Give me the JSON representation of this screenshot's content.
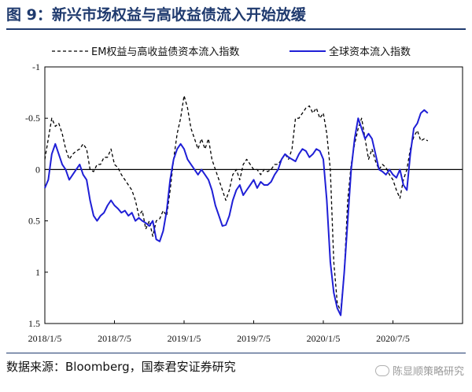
{
  "title": "图 9：新兴市场权益与高收益债流入开始放缓",
  "source": "数据来源：Bloomberg，国泰君安证券研究",
  "watermark": "陈显顺策略研究",
  "colors": {
    "title": "#1f3a6e",
    "series_em": "#000000",
    "series_global": "#1f1fd6"
  },
  "chart_data": {
    "type": "line",
    "y_inverted": true,
    "ylim": [
      -1,
      1.5
    ],
    "y_ticks": [
      {
        "value": -1,
        "label": "-1"
      },
      {
        "value": -0.5,
        "label": "-0.5"
      },
      {
        "value": 0,
        "label": "0"
      },
      {
        "value": 0.5,
        "label": "0.5"
      },
      {
        "value": 1,
        "label": "1"
      },
      {
        "value": 1.5,
        "label": "1.5"
      }
    ],
    "xlim": [
      0,
      36
    ],
    "x_ticks": [
      {
        "value": 0,
        "label": "2018/1/5"
      },
      {
        "value": 6,
        "label": "2018/7/5"
      },
      {
        "value": 12,
        "label": "2019/1/5"
      },
      {
        "value": 18,
        "label": "2019/7/5"
      },
      {
        "value": 24,
        "label": "2020/1/5"
      },
      {
        "value": 30,
        "label": "2020/7/5"
      }
    ],
    "legend_position": "top",
    "grid": false,
    "series": [
      {
        "name": "EM权益与高收益债资本流入指数",
        "style": "dashed",
        "points": [
          [
            0,
            -0.1
          ],
          [
            0.3,
            -0.3
          ],
          [
            0.6,
            -0.5
          ],
          [
            0.9,
            -0.42
          ],
          [
            1.2,
            -0.45
          ],
          [
            1.5,
            -0.35
          ],
          [
            1.8,
            -0.2
          ],
          [
            2.1,
            -0.1
          ],
          [
            2.4,
            -0.15
          ],
          [
            2.7,
            -0.18
          ],
          [
            3.0,
            -0.2
          ],
          [
            3.3,
            -0.25
          ],
          [
            3.6,
            -0.2
          ],
          [
            3.9,
            0.0
          ],
          [
            4.2,
            0.02
          ],
          [
            4.5,
            -0.05
          ],
          [
            4.8,
            -0.05
          ],
          [
            5.1,
            -0.12
          ],
          [
            5.4,
            -0.12
          ],
          [
            5.7,
            -0.2
          ],
          [
            6.0,
            -0.05
          ],
          [
            6.3,
            -0.02
          ],
          [
            6.6,
            0.05
          ],
          [
            6.9,
            0.1
          ],
          [
            7.2,
            0.15
          ],
          [
            7.5,
            0.2
          ],
          [
            7.8,
            0.3
          ],
          [
            8.1,
            0.45
          ],
          [
            8.4,
            0.4
          ],
          [
            8.7,
            0.58
          ],
          [
            9.0,
            0.5
          ],
          [
            9.3,
            0.65
          ],
          [
            9.6,
            0.5
          ],
          [
            9.9,
            0.48
          ],
          [
            10.2,
            0.4
          ],
          [
            10.5,
            0.45
          ],
          [
            10.8,
            0.2
          ],
          [
            11.1,
            -0.1
          ],
          [
            11.4,
            -0.35
          ],
          [
            11.7,
            -0.5
          ],
          [
            12.0,
            -0.72
          ],
          [
            12.3,
            -0.6
          ],
          [
            12.6,
            -0.4
          ],
          [
            12.9,
            -0.3
          ],
          [
            13.2,
            -0.2
          ],
          [
            13.5,
            -0.3
          ],
          [
            13.8,
            -0.2
          ],
          [
            14.1,
            -0.3
          ],
          [
            14.4,
            -0.1
          ],
          [
            14.7,
            0.0
          ],
          [
            15.0,
            0.1
          ],
          [
            15.3,
            0.2
          ],
          [
            15.6,
            0.3
          ],
          [
            15.9,
            0.2
          ],
          [
            16.2,
            0.05
          ],
          [
            16.5,
            0.0
          ],
          [
            16.8,
            0.1
          ],
          [
            17.1,
            -0.05
          ],
          [
            17.4,
            -0.1
          ],
          [
            17.7,
            -0.05
          ],
          [
            18.0,
            0.0
          ],
          [
            18.3,
            0.0
          ],
          [
            18.6,
            0.05
          ],
          [
            18.9,
            0.0
          ],
          [
            19.2,
            0.02
          ],
          [
            19.5,
            0.0
          ],
          [
            19.8,
            -0.05
          ],
          [
            20.1,
            -0.05
          ],
          [
            20.4,
            -0.1
          ],
          [
            20.7,
            -0.15
          ],
          [
            21.0,
            -0.1
          ],
          [
            21.3,
            -0.2
          ],
          [
            21.6,
            -0.5
          ],
          [
            21.9,
            -0.5
          ],
          [
            22.2,
            -0.55
          ],
          [
            22.5,
            -0.6
          ],
          [
            22.8,
            -0.62
          ],
          [
            23.1,
            -0.55
          ],
          [
            23.4,
            -0.6
          ],
          [
            23.7,
            -0.5
          ],
          [
            24.0,
            -0.55
          ],
          [
            24.3,
            -0.35
          ],
          [
            24.6,
            0.0
          ],
          [
            24.9,
            0.9
          ],
          [
            25.2,
            1.3
          ],
          [
            25.5,
            1.38
          ],
          [
            25.8,
            1.0
          ],
          [
            26.1,
            0.3
          ],
          [
            26.4,
            -0.05
          ],
          [
            26.7,
            -0.25
          ],
          [
            27.0,
            -0.4
          ],
          [
            27.3,
            -0.5
          ],
          [
            27.6,
            -0.3
          ],
          [
            27.9,
            -0.1
          ],
          [
            28.2,
            -0.2
          ],
          [
            28.5,
            -0.08
          ],
          [
            28.8,
            0.0
          ],
          [
            29.1,
            -0.05
          ],
          [
            29.4,
            -0.02
          ],
          [
            29.7,
            0.05
          ],
          [
            30.0,
            0.1
          ],
          [
            30.3,
            0.2
          ],
          [
            30.6,
            0.28
          ],
          [
            30.9,
            0.1
          ],
          [
            31.2,
            0.0
          ],
          [
            31.5,
            -0.2
          ],
          [
            31.8,
            -0.32
          ],
          [
            32.1,
            -0.38
          ],
          [
            32.4,
            -0.28
          ],
          [
            32.7,
            -0.3
          ],
          [
            33.0,
            -0.28
          ]
        ]
      },
      {
        "name": "全球资本流入指数",
        "style": "solid",
        "points": [
          [
            0,
            0.18
          ],
          [
            0.3,
            0.1
          ],
          [
            0.6,
            -0.15
          ],
          [
            0.9,
            -0.25
          ],
          [
            1.2,
            -0.15
          ],
          [
            1.5,
            -0.05
          ],
          [
            1.8,
            0.0
          ],
          [
            2.1,
            0.1
          ],
          [
            2.4,
            0.05
          ],
          [
            2.7,
            0.0
          ],
          [
            3.0,
            -0.05
          ],
          [
            3.3,
            0.05
          ],
          [
            3.6,
            0.1
          ],
          [
            3.9,
            0.3
          ],
          [
            4.2,
            0.45
          ],
          [
            4.5,
            0.5
          ],
          [
            4.8,
            0.45
          ],
          [
            5.1,
            0.42
          ],
          [
            5.4,
            0.35
          ],
          [
            5.7,
            0.3
          ],
          [
            6.0,
            0.35
          ],
          [
            6.3,
            0.38
          ],
          [
            6.6,
            0.42
          ],
          [
            6.9,
            0.4
          ],
          [
            7.2,
            0.45
          ],
          [
            7.5,
            0.42
          ],
          [
            7.8,
            0.5
          ],
          [
            8.1,
            0.47
          ],
          [
            8.4,
            0.5
          ],
          [
            8.7,
            0.52
          ],
          [
            9.0,
            0.55
          ],
          [
            9.3,
            0.5
          ],
          [
            9.6,
            0.68
          ],
          [
            9.9,
            0.7
          ],
          [
            10.2,
            0.6
          ],
          [
            10.5,
            0.4
          ],
          [
            10.8,
            0.1
          ],
          [
            11.1,
            -0.1
          ],
          [
            11.4,
            -0.2
          ],
          [
            11.7,
            -0.25
          ],
          [
            12.0,
            -0.2
          ],
          [
            12.3,
            -0.1
          ],
          [
            12.6,
            -0.05
          ],
          [
            12.9,
            0.0
          ],
          [
            13.2,
            0.05
          ],
          [
            13.5,
            0.0
          ],
          [
            13.8,
            0.05
          ],
          [
            14.1,
            0.1
          ],
          [
            14.4,
            0.2
          ],
          [
            14.7,
            0.35
          ],
          [
            15.0,
            0.45
          ],
          [
            15.3,
            0.55
          ],
          [
            15.6,
            0.54
          ],
          [
            15.9,
            0.45
          ],
          [
            16.2,
            0.3
          ],
          [
            16.5,
            0.2
          ],
          [
            16.8,
            0.15
          ],
          [
            17.1,
            0.25
          ],
          [
            17.4,
            0.2
          ],
          [
            17.7,
            0.15
          ],
          [
            18.0,
            0.1
          ],
          [
            18.3,
            0.18
          ],
          [
            18.6,
            0.12
          ],
          [
            18.9,
            0.15
          ],
          [
            19.2,
            0.15
          ],
          [
            19.5,
            0.12
          ],
          [
            19.8,
            0.05
          ],
          [
            20.1,
            0.0
          ],
          [
            20.4,
            -0.1
          ],
          [
            20.7,
            -0.15
          ],
          [
            21.0,
            -0.12
          ],
          [
            21.3,
            -0.1
          ],
          [
            21.6,
            -0.08
          ],
          [
            21.9,
            -0.15
          ],
          [
            22.2,
            -0.2
          ],
          [
            22.5,
            -0.18
          ],
          [
            22.8,
            -0.12
          ],
          [
            23.1,
            -0.15
          ],
          [
            23.4,
            -0.2
          ],
          [
            23.7,
            -0.18
          ],
          [
            24.0,
            -0.1
          ],
          [
            24.3,
            0.3
          ],
          [
            24.6,
            0.9
          ],
          [
            24.9,
            1.2
          ],
          [
            25.2,
            1.35
          ],
          [
            25.5,
            1.42
          ],
          [
            25.8,
            1.0
          ],
          [
            26.1,
            0.5
          ],
          [
            26.4,
            0.0
          ],
          [
            26.7,
            -0.3
          ],
          [
            27.0,
            -0.5
          ],
          [
            27.3,
            -0.4
          ],
          [
            27.6,
            -0.3
          ],
          [
            27.9,
            -0.35
          ],
          [
            28.2,
            -0.3
          ],
          [
            28.5,
            -0.15
          ],
          [
            28.8,
            0.0
          ],
          [
            29.1,
            0.02
          ],
          [
            29.4,
            0.05
          ],
          [
            29.7,
            0.0
          ],
          [
            30.0,
            0.05
          ],
          [
            30.3,
            0.08
          ],
          [
            30.6,
            0.0
          ],
          [
            30.9,
            0.15
          ],
          [
            31.2,
            0.2
          ],
          [
            31.5,
            -0.15
          ],
          [
            31.8,
            -0.4
          ],
          [
            32.1,
            -0.45
          ],
          [
            32.4,
            -0.55
          ],
          [
            32.7,
            -0.58
          ],
          [
            33.0,
            -0.55
          ]
        ]
      }
    ]
  }
}
